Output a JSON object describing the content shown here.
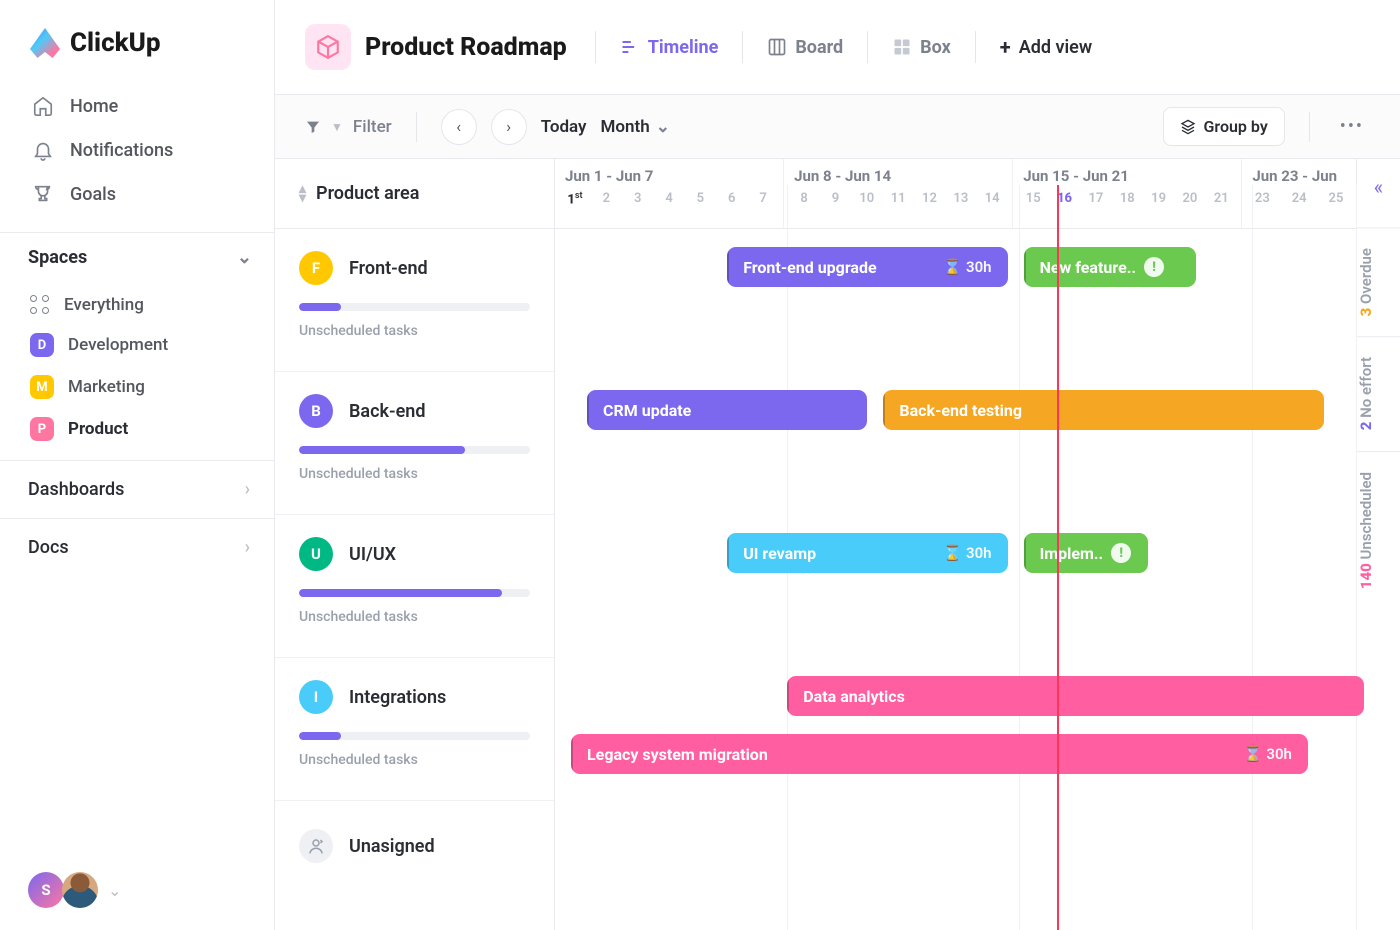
{
  "brand": "ClickUp",
  "nav": {
    "home": "Home",
    "notifications": "Notifications",
    "goals": "Goals"
  },
  "spaces": {
    "header": "Spaces",
    "everything": "Everything",
    "items": [
      {
        "letter": "D",
        "label": "Development",
        "color": "#7b68ee"
      },
      {
        "letter": "M",
        "label": "Marketing",
        "color": "#ffc800"
      },
      {
        "letter": "P",
        "label": "Product",
        "color": "#ff76a1",
        "active": true
      }
    ]
  },
  "sections": {
    "dashboards": "Dashboards",
    "docs": "Docs"
  },
  "avatar": {
    "letter": "S"
  },
  "page": {
    "title": "Product Roadmap"
  },
  "views": {
    "timeline": "Timeline",
    "board": "Board",
    "box": "Box",
    "add": "Add view"
  },
  "toolbar": {
    "filter": "Filter",
    "today": "Today",
    "period": "Month",
    "groupby": "Group by"
  },
  "column_header": "Product area",
  "weeks": [
    {
      "label": "Jun 1 - Jun 7",
      "days": [
        "1",
        "2",
        "3",
        "4",
        "5",
        "6",
        "7"
      ]
    },
    {
      "label": "Jun 8 - Jun 14",
      "days": [
        "8",
        "9",
        "10",
        "11",
        "12",
        "13",
        "14"
      ]
    },
    {
      "label": "Jun 15 - Jun 21",
      "days": [
        "15",
        "16",
        "17",
        "18",
        "19",
        "20",
        "21"
      ]
    },
    {
      "label": "Jun 23 - Jun",
      "days": [
        "23",
        "24",
        "25"
      ]
    }
  ],
  "first_day_suffix": "st",
  "today_day": "16",
  "today_line_pct": 62.7,
  "lanes": [
    {
      "letter": "F",
      "name": "Front-end",
      "color": "#ffc800",
      "progress_pct": 18,
      "progress_color": "#7b68ee",
      "sub": "Unscheduled tasks"
    },
    {
      "letter": "B",
      "name": "Back-end",
      "color": "#7b68ee",
      "progress_pct": 72,
      "progress_color": "#7b68ee",
      "sub": "Unscheduled tasks"
    },
    {
      "letter": "U",
      "name": "UI/UX",
      "color": "#00b884",
      "progress_pct": 88,
      "progress_color": "#7b68ee",
      "sub": "Unscheduled tasks"
    },
    {
      "letter": "I",
      "name": "Integrations",
      "color": "#49ccf9",
      "progress_pct": 18,
      "progress_color": "#7b68ee",
      "sub": "Unscheduled tasks"
    }
  ],
  "unassigned": "Unasigned",
  "lane_height": 143,
  "tasks": [
    {
      "lane": 0,
      "row": 0,
      "label": "Front-end upgrade",
      "color": "#7b68ee",
      "left_pct": 21.5,
      "width_pct": 35.0,
      "estimate": "30h"
    },
    {
      "lane": 0,
      "row": 0,
      "label": "New feature..",
      "color": "#6bc950",
      "left_pct": 58.5,
      "width_pct": 21.5,
      "warn": true
    },
    {
      "lane": 1,
      "row": 0,
      "label": "CRM update",
      "color": "#7b68ee",
      "left_pct": 4.0,
      "width_pct": 35.0
    },
    {
      "lane": 1,
      "row": 0,
      "label": "Back-end testing",
      "color": "#f5a623",
      "left_pct": 41.0,
      "width_pct": 55.0
    },
    {
      "lane": 2,
      "row": 0,
      "label": "UI revamp",
      "color": "#49ccf9",
      "left_pct": 21.5,
      "width_pct": 35.0,
      "estimate": "30h"
    },
    {
      "lane": 2,
      "row": 0,
      "label": "Implem..",
      "color": "#6bc950",
      "left_pct": 58.5,
      "width_pct": 15.5,
      "warn": true
    },
    {
      "lane": 3,
      "row": 0,
      "label": "Data analytics",
      "color": "#ff5ea1",
      "left_pct": 29.0,
      "width_pct": 72.0
    },
    {
      "lane": 3,
      "row": 1,
      "label": "Legacy system migration",
      "color": "#ff5ea1",
      "left_pct": 2.0,
      "width_pct": 92.0,
      "estimate": "30h"
    }
  ],
  "rail": {
    "overdue_n": "3",
    "overdue": "Overdue",
    "overdue_color": "#f5a623",
    "noeffort_n": "2",
    "noeffort": "No effort",
    "noeffort_color": "#7b68ee",
    "unsched_n": "140",
    "unsched": "Unscheduled",
    "unsched_color": "#ff5ea1"
  }
}
